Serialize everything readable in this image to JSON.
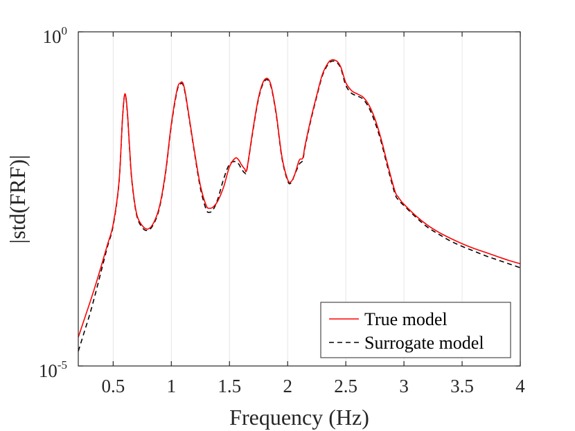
{
  "chart_data": {
    "type": "line",
    "title": "",
    "xlabel": "Frequency (Hz)",
    "ylabel": "|std(FRF)|",
    "xlim": [
      0.2,
      4.0
    ],
    "ylim_log10": [
      -5,
      0
    ],
    "y_scale": "log",
    "grid": "vertical",
    "legend_position": "bottom-right",
    "x_ticks": [
      0.5,
      1,
      1.5,
      2,
      2.5,
      3,
      3.5,
      4
    ],
    "x_tick_labels": [
      "0.5",
      "1",
      "1.5",
      "2",
      "2.5",
      "3",
      "3.5",
      "4"
    ],
    "y_ticks": [
      {
        "base": "10",
        "exp": "0",
        "value_log10": 0
      },
      {
        "base": "10",
        "exp": "-5",
        "value_log10": -5
      }
    ],
    "series": [
      {
        "name": "True model",
        "color": "#ff0000",
        "style": "solid",
        "x": [
          0.2,
          0.25,
          0.3,
          0.35,
          0.4,
          0.45,
          0.5,
          0.55,
          0.58,
          0.6,
          0.62,
          0.64,
          0.66,
          0.7,
          0.75,
          0.8,
          0.85,
          0.9,
          0.95,
          1.0,
          1.05,
          1.08,
          1.1,
          1.12,
          1.15,
          1.2,
          1.25,
          1.3,
          1.33,
          1.36,
          1.4,
          1.45,
          1.5,
          1.55,
          1.58,
          1.6,
          1.63,
          1.65,
          1.7,
          1.75,
          1.8,
          1.85,
          1.9,
          1.95,
          2.0,
          2.03,
          2.06,
          2.1,
          2.13,
          2.15,
          2.2,
          2.25,
          2.3,
          2.35,
          2.38,
          2.4,
          2.43,
          2.46,
          2.5,
          2.55,
          2.6,
          2.65,
          2.7,
          2.75,
          2.8,
          2.85,
          2.9,
          2.93,
          2.95,
          2.97,
          3.0,
          3.1,
          3.2,
          3.3,
          3.4,
          3.5,
          3.6,
          3.7,
          3.8,
          3.9,
          4.0
        ],
        "y_log10": [
          -4.57,
          -4.31,
          -4.05,
          -3.78,
          -3.49,
          -3.19,
          -2.88,
          -2.25,
          -1.3,
          -0.93,
          -1.15,
          -1.7,
          -2.2,
          -2.71,
          -2.9,
          -2.95,
          -2.85,
          -2.6,
          -2.1,
          -1.38,
          -0.86,
          -0.76,
          -0.77,
          -0.91,
          -1.24,
          -1.8,
          -2.3,
          -2.6,
          -2.64,
          -2.62,
          -2.53,
          -2.32,
          -2.02,
          -1.89,
          -1.92,
          -1.98,
          -2.05,
          -2.05,
          -1.48,
          -0.98,
          -0.72,
          -0.76,
          -1.2,
          -1.86,
          -2.21,
          -2.24,
          -2.14,
          -1.92,
          -1.89,
          -1.7,
          -1.3,
          -0.95,
          -0.63,
          -0.46,
          -0.42,
          -0.42,
          -0.45,
          -0.54,
          -0.76,
          -0.88,
          -0.93,
          -0.98,
          -1.1,
          -1.3,
          -1.58,
          -1.92,
          -2.25,
          -2.42,
          -2.47,
          -2.52,
          -2.58,
          -2.75,
          -2.89,
          -3.0,
          -3.09,
          -3.17,
          -3.24,
          -3.3,
          -3.36,
          -3.42,
          -3.47
        ]
      },
      {
        "name": "Surrogate model",
        "color": "#000000",
        "style": "dashed",
        "x": [
          0.2,
          0.25,
          0.3,
          0.35,
          0.4,
          0.45,
          0.5,
          0.55,
          0.58,
          0.6,
          0.62,
          0.64,
          0.66,
          0.7,
          0.75,
          0.8,
          0.85,
          0.9,
          0.95,
          1.0,
          1.05,
          1.08,
          1.1,
          1.12,
          1.15,
          1.2,
          1.25,
          1.3,
          1.33,
          1.36,
          1.4,
          1.45,
          1.5,
          1.55,
          1.58,
          1.6,
          1.63,
          1.65,
          1.7,
          1.75,
          1.8,
          1.85,
          1.9,
          1.95,
          2.0,
          2.03,
          2.06,
          2.1,
          2.13,
          2.15,
          2.2,
          2.25,
          2.3,
          2.35,
          2.38,
          2.4,
          2.43,
          2.46,
          2.5,
          2.55,
          2.6,
          2.65,
          2.7,
          2.75,
          2.8,
          2.85,
          2.9,
          2.93,
          2.95,
          2.97,
          3.0,
          3.1,
          3.2,
          3.3,
          3.4,
          3.5,
          3.6,
          3.7,
          3.8,
          3.9,
          4.0
        ],
        "y_log10": [
          -4.78,
          -4.5,
          -4.22,
          -3.9,
          -3.56,
          -3.22,
          -2.9,
          -2.26,
          -1.3,
          -0.94,
          -1.17,
          -1.72,
          -2.22,
          -2.73,
          -2.93,
          -2.97,
          -2.87,
          -2.62,
          -2.12,
          -1.4,
          -0.88,
          -0.78,
          -0.79,
          -0.93,
          -1.26,
          -1.82,
          -2.34,
          -2.66,
          -2.7,
          -2.66,
          -2.5,
          -2.2,
          -1.98,
          -1.94,
          -1.98,
          -2.04,
          -2.11,
          -2.06,
          -1.5,
          -1.0,
          -0.74,
          -0.78,
          -1.22,
          -1.88,
          -2.23,
          -2.26,
          -2.14,
          -1.98,
          -1.92,
          -1.72,
          -1.32,
          -0.97,
          -0.65,
          -0.48,
          -0.44,
          -0.44,
          -0.47,
          -0.56,
          -0.8,
          -0.92,
          -0.96,
          -1.01,
          -1.14,
          -1.35,
          -1.62,
          -1.96,
          -2.29,
          -2.46,
          -2.51,
          -2.55,
          -2.6,
          -2.77,
          -2.92,
          -3.03,
          -3.13,
          -3.21,
          -3.28,
          -3.35,
          -3.41,
          -3.47,
          -3.53
        ]
      }
    ]
  }
}
